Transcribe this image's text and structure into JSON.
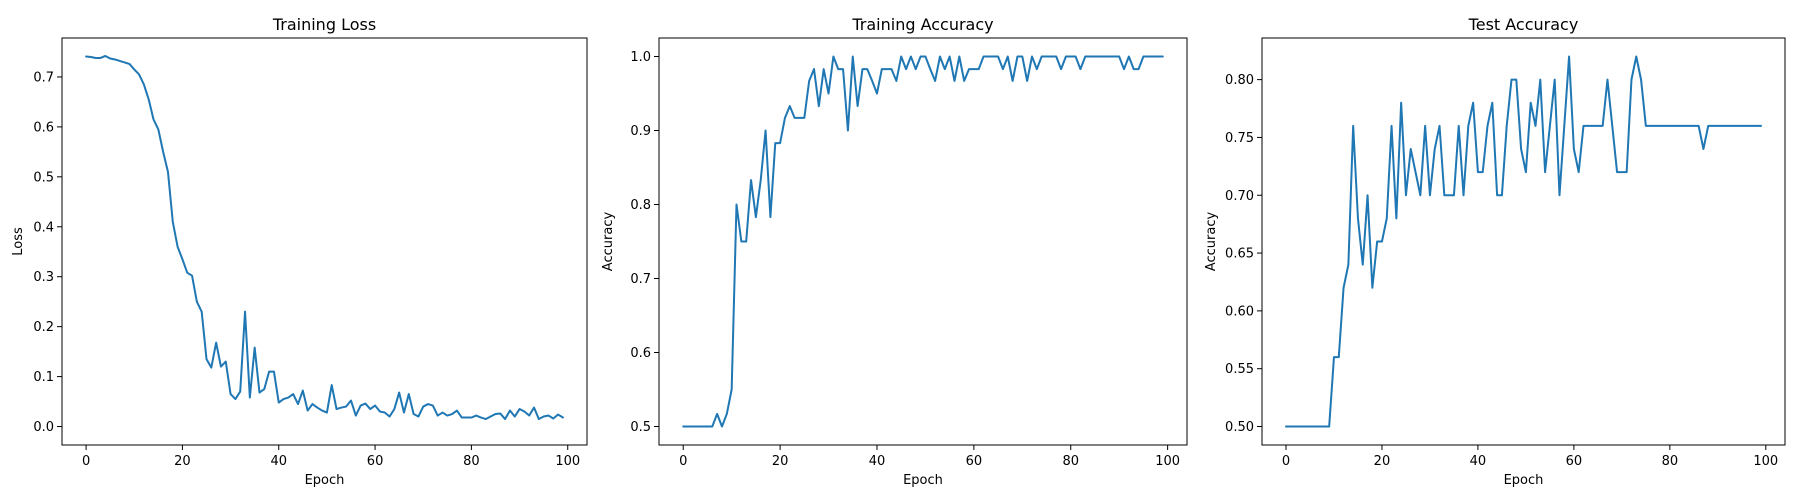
{
  "chart_data": [
    {
      "type": "line",
      "title": "Training Loss",
      "xlabel": "Epoch",
      "ylabel": "Loss",
      "xlim": [
        -5,
        104
      ],
      "ylim": [
        -0.037,
        0.778
      ],
      "xticks": [
        0,
        20,
        40,
        60,
        80,
        100
      ],
      "xtick_labels": [
        "0",
        "20",
        "40",
        "60",
        "80",
        "100"
      ],
      "yticks": [
        0.0,
        0.1,
        0.2,
        0.3,
        0.4,
        0.5,
        0.6,
        0.7
      ],
      "ytick_labels": [
        "0.0",
        "0.1",
        "0.2",
        "0.3",
        "0.4",
        "0.5",
        "0.6",
        "0.7"
      ],
      "grid": false,
      "color": "#1f77b4",
      "x": [
        0,
        1,
        2,
        3,
        4,
        5,
        6,
        7,
        8,
        9,
        10,
        11,
        12,
        13,
        14,
        15,
        16,
        17,
        18,
        19,
        20,
        21,
        22,
        23,
        24,
        25,
        26,
        27,
        28,
        29,
        30,
        31,
        32,
        33,
        34,
        35,
        36,
        37,
        38,
        39,
        40,
        41,
        42,
        43,
        44,
        45,
        46,
        47,
        48,
        49,
        50,
        51,
        52,
        53,
        54,
        55,
        56,
        57,
        58,
        59,
        60,
        61,
        62,
        63,
        64,
        65,
        66,
        67,
        68,
        69,
        70,
        71,
        72,
        73,
        74,
        75,
        76,
        77,
        78,
        79,
        80,
        81,
        82,
        83,
        84,
        85,
        86,
        87,
        88,
        89,
        90,
        91,
        92,
        93,
        94,
        95,
        96,
        97,
        98,
        99
      ],
      "y": [
        0.741,
        0.74,
        0.738,
        0.738,
        0.742,
        0.737,
        0.735,
        0.732,
        0.729,
        0.726,
        0.715,
        0.705,
        0.685,
        0.655,
        0.615,
        0.595,
        0.55,
        0.51,
        0.41,
        0.36,
        0.335,
        0.308,
        0.302,
        0.25,
        0.23,
        0.135,
        0.118,
        0.168,
        0.12,
        0.13,
        0.065,
        0.055,
        0.07,
        0.23,
        0.058,
        0.158,
        0.068,
        0.075,
        0.11,
        0.11,
        0.048,
        0.055,
        0.058,
        0.065,
        0.045,
        0.072,
        0.032,
        0.045,
        0.038,
        0.032,
        0.028,
        0.083,
        0.035,
        0.038,
        0.04,
        0.052,
        0.022,
        0.042,
        0.046,
        0.035,
        0.042,
        0.03,
        0.028,
        0.02,
        0.035,
        0.068,
        0.028,
        0.065,
        0.025,
        0.02,
        0.04,
        0.045,
        0.042,
        0.022,
        0.028,
        0.022,
        0.025,
        0.032,
        0.018,
        0.018,
        0.018,
        0.022,
        0.018,
        0.015,
        0.02,
        0.025,
        0.026,
        0.015,
        0.032,
        0.02,
        0.035,
        0.03,
        0.022,
        0.038,
        0.015,
        0.02,
        0.022,
        0.016,
        0.024,
        0.018
      ]
    },
    {
      "type": "line",
      "title": "Training Accuracy",
      "xlabel": "Epoch",
      "ylabel": "Accuracy",
      "xlim": [
        -5,
        104
      ],
      "ylim": [
        0.475,
        1.025
      ],
      "xticks": [
        0,
        20,
        40,
        60,
        80,
        100
      ],
      "xtick_labels": [
        "0",
        "20",
        "40",
        "60",
        "80",
        "100"
      ],
      "yticks": [
        0.5,
        0.6,
        0.7,
        0.8,
        0.9,
        1.0
      ],
      "ytick_labels": [
        "0.5",
        "0.6",
        "0.7",
        "0.8",
        "0.9",
        "1.0"
      ],
      "grid": false,
      "color": "#1f77b4",
      "x": [
        0,
        1,
        2,
        3,
        4,
        5,
        6,
        7,
        8,
        9,
        10,
        11,
        12,
        13,
        14,
        15,
        16,
        17,
        18,
        19,
        20,
        21,
        22,
        23,
        24,
        25,
        26,
        27,
        28,
        29,
        30,
        31,
        32,
        33,
        34,
        35,
        36,
        37,
        38,
        39,
        40,
        41,
        42,
        43,
        44,
        45,
        46,
        47,
        48,
        49,
        50,
        51,
        52,
        53,
        54,
        55,
        56,
        57,
        58,
        59,
        60,
        61,
        62,
        63,
        64,
        65,
        66,
        67,
        68,
        69,
        70,
        71,
        72,
        73,
        74,
        75,
        76,
        77,
        78,
        79,
        80,
        81,
        82,
        83,
        84,
        85,
        86,
        87,
        88,
        89,
        90,
        91,
        92,
        93,
        94,
        95,
        96,
        97,
        98,
        99
      ],
      "y": [
        0.5,
        0.5,
        0.5,
        0.5,
        0.5,
        0.5,
        0.5,
        0.517,
        0.5,
        0.517,
        0.55,
        0.8,
        0.75,
        0.75,
        0.833,
        0.783,
        0.833,
        0.9,
        0.783,
        0.883,
        0.883,
        0.917,
        0.933,
        0.917,
        0.917,
        0.917,
        0.967,
        0.983,
        0.933,
        0.983,
        0.95,
        1.0,
        0.983,
        0.983,
        0.9,
        1.0,
        0.933,
        0.983,
        0.983,
        0.967,
        0.95,
        0.983,
        0.983,
        0.983,
        0.967,
        1.0,
        0.983,
        1.0,
        0.983,
        1.0,
        1.0,
        0.983,
        0.967,
        1.0,
        0.983,
        1.0,
        0.967,
        1.0,
        0.967,
        0.983,
        0.983,
        0.983,
        1.0,
        1.0,
        1.0,
        1.0,
        0.983,
        1.0,
        0.967,
        1.0,
        1.0,
        0.967,
        1.0,
        0.983,
        1.0,
        1.0,
        1.0,
        1.0,
        0.983,
        1.0,
        1.0,
        1.0,
        0.983,
        1.0,
        1.0,
        1.0,
        1.0,
        1.0,
        1.0,
        1.0,
        1.0,
        0.983,
        1.0,
        0.983,
        0.983,
        1.0,
        1.0,
        1.0,
        1.0,
        1.0
      ]
    },
    {
      "type": "line",
      "title": "Test Accuracy",
      "xlabel": "Epoch",
      "ylabel": "Accuracy",
      "xlim": [
        -5,
        104
      ],
      "ylim": [
        0.484,
        0.836
      ],
      "xticks": [
        0,
        20,
        40,
        60,
        80,
        100
      ],
      "xtick_labels": [
        "0",
        "20",
        "40",
        "60",
        "80",
        "100"
      ],
      "yticks": [
        0.5,
        0.55,
        0.6,
        0.65,
        0.7,
        0.75,
        0.8
      ],
      "ytick_labels": [
        "0.50",
        "0.55",
        "0.60",
        "0.65",
        "0.70",
        "0.75",
        "0.80"
      ],
      "grid": false,
      "color": "#1f77b4",
      "x": [
        0,
        1,
        2,
        3,
        4,
        5,
        6,
        7,
        8,
        9,
        10,
        11,
        12,
        13,
        14,
        15,
        16,
        17,
        18,
        19,
        20,
        21,
        22,
        23,
        24,
        25,
        26,
        27,
        28,
        29,
        30,
        31,
        32,
        33,
        34,
        35,
        36,
        37,
        38,
        39,
        40,
        41,
        42,
        43,
        44,
        45,
        46,
        47,
        48,
        49,
        50,
        51,
        52,
        53,
        54,
        55,
        56,
        57,
        58,
        59,
        60,
        61,
        62,
        63,
        64,
        65,
        66,
        67,
        68,
        69,
        70,
        71,
        72,
        73,
        74,
        75,
        76,
        77,
        78,
        79,
        80,
        81,
        82,
        83,
        84,
        85,
        86,
        87,
        88,
        89,
        90,
        91,
        92,
        93,
        94,
        95,
        96,
        97,
        98,
        99
      ],
      "y": [
        0.5,
        0.5,
        0.5,
        0.5,
        0.5,
        0.5,
        0.5,
        0.5,
        0.5,
        0.5,
        0.56,
        0.56,
        0.62,
        0.64,
        0.76,
        0.68,
        0.64,
        0.7,
        0.62,
        0.66,
        0.66,
        0.68,
        0.76,
        0.68,
        0.78,
        0.7,
        0.74,
        0.72,
        0.7,
        0.76,
        0.7,
        0.74,
        0.76,
        0.7,
        0.7,
        0.7,
        0.76,
        0.7,
        0.76,
        0.78,
        0.72,
        0.72,
        0.76,
        0.78,
        0.7,
        0.7,
        0.76,
        0.8,
        0.8,
        0.74,
        0.72,
        0.78,
        0.76,
        0.8,
        0.72,
        0.76,
        0.8,
        0.7,
        0.76,
        0.82,
        0.74,
        0.72,
        0.76,
        0.76,
        0.76,
        0.76,
        0.76,
        0.8,
        0.76,
        0.72,
        0.72,
        0.72,
        0.8,
        0.82,
        0.8,
        0.76,
        0.76,
        0.76,
        0.76,
        0.76,
        0.76,
        0.76,
        0.76,
        0.76,
        0.76,
        0.76,
        0.76,
        0.74,
        0.76,
        0.76,
        0.76,
        0.76,
        0.76,
        0.76,
        0.76,
        0.76,
        0.76,
        0.76,
        0.76,
        0.76
      ]
    }
  ]
}
